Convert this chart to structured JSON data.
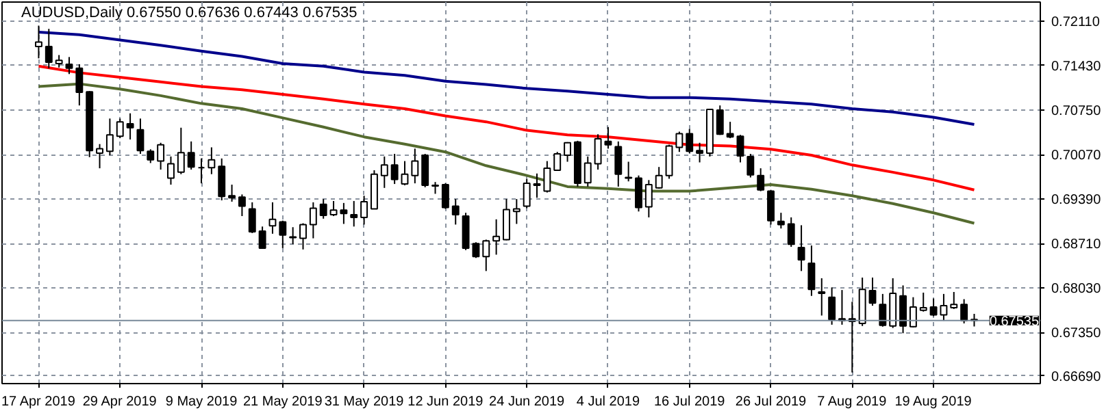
{
  "chart_data": {
    "type": "candlestick",
    "title": "AUDUSD,Daily  0.67550 0.67636 0.67443 0.67535",
    "categories": [
      "17 Apr 2019",
      null,
      null,
      null,
      null,
      null,
      null,
      null,
      "29 Apr 2019",
      null,
      null,
      null,
      null,
      null,
      null,
      null,
      "9 May 2019",
      null,
      null,
      null,
      null,
      null,
      null,
      null,
      "21 May 2019",
      null,
      null,
      null,
      null,
      null,
      null,
      null,
      "31 May 2019",
      null,
      null,
      null,
      null,
      null,
      null,
      null,
      "12 Jun 2019",
      null,
      null,
      null,
      null,
      null,
      null,
      null,
      "24 Jun 2019",
      null,
      null,
      null,
      null,
      null,
      null,
      null,
      "4 Jul 2019",
      null,
      null,
      null,
      null,
      null,
      null,
      null,
      "16 Jul 2019",
      null,
      null,
      null,
      null,
      null,
      null,
      null,
      "26 Jul 2019",
      null,
      null,
      null,
      null,
      null,
      null,
      null,
      "7 Aug 2019",
      null,
      null,
      null,
      null,
      null,
      null,
      null,
      "19 Aug 2019",
      null,
      null,
      null,
      null
    ],
    "ohlc": [
      [
        0.7172,
        0.7204,
        0.7154,
        0.7179
      ],
      [
        0.7172,
        0.7199,
        0.7139,
        0.7148
      ],
      [
        0.7146,
        0.7159,
        0.714,
        0.7151
      ],
      [
        0.7145,
        0.7156,
        0.713,
        0.7139
      ],
      [
        0.7139,
        0.7145,
        0.7082,
        0.7102
      ],
      [
        0.7103,
        0.7104,
        0.7003,
        0.7013
      ],
      [
        0.7009,
        0.7023,
        0.6986,
        0.7016
      ],
      [
        0.7012,
        0.7062,
        0.7006,
        0.7037
      ],
      [
        0.7035,
        0.7062,
        0.7032,
        0.7057
      ],
      [
        0.7054,
        0.707,
        0.703,
        0.7048
      ],
      [
        0.7045,
        0.7062,
        0.7008,
        0.7013
      ],
      [
        0.7012,
        0.7015,
        0.6994,
        0.6999
      ],
      [
        0.6997,
        0.7025,
        0.6984,
        0.7022
      ],
      [
        0.6971,
        0.7004,
        0.6961,
        0.6993
      ],
      [
        0.698,
        0.7048,
        0.6977,
        0.701
      ],
      [
        0.701,
        0.7027,
        0.6984,
        0.6988
      ],
      [
        0.6987,
        0.7001,
        0.6963,
        0.6987
      ],
      [
        0.6987,
        0.7018,
        0.6977,
        0.6999
      ],
      [
        0.6989,
        0.7001,
        0.6937,
        0.6943
      ],
      [
        0.6944,
        0.6961,
        0.6935,
        0.6941
      ],
      [
        0.6942,
        0.6946,
        0.6913,
        0.6928
      ],
      [
        0.6924,
        0.6934,
        0.6887,
        0.6889
      ],
      [
        0.689,
        0.6897,
        0.6863,
        0.6864
      ],
      [
        0.6898,
        0.6934,
        0.6886,
        0.6908
      ],
      [
        0.6904,
        0.6906,
        0.6864,
        0.6884
      ],
      [
        0.6881,
        0.6896,
        0.687,
        0.688
      ],
      [
        0.6879,
        0.6902,
        0.6862,
        0.69
      ],
      [
        0.69,
        0.6934,
        0.6879,
        0.6925
      ],
      [
        0.6931,
        0.6939,
        0.6909,
        0.6914
      ],
      [
        0.6915,
        0.6936,
        0.6913,
        0.6922
      ],
      [
        0.6922,
        0.6933,
        0.6901,
        0.6917
      ],
      [
        0.6915,
        0.6936,
        0.6897,
        0.6911
      ],
      [
        0.6911,
        0.6944,
        0.69,
        0.6935
      ],
      [
        0.6924,
        0.6983,
        0.6924,
        0.6977
      ],
      [
        0.6975,
        0.7004,
        0.6956,
        0.6991
      ],
      [
        0.6991,
        0.7008,
        0.6962,
        0.6969
      ],
      [
        0.6962,
        0.6997,
        0.696,
        0.6977
      ],
      [
        0.6975,
        0.7016,
        0.6963,
        0.6997
      ],
      [
        0.7006,
        0.7008,
        0.6957,
        0.696
      ],
      [
        0.696,
        0.6965,
        0.6947,
        0.6959
      ],
      [
        0.6961,
        0.6963,
        0.6924,
        0.6926
      ],
      [
        0.6928,
        0.6939,
        0.69,
        0.6915
      ],
      [
        0.6913,
        0.6918,
        0.6861,
        0.6864
      ],
      [
        0.6871,
        0.6873,
        0.6849,
        0.6851
      ],
      [
        0.6851,
        0.6877,
        0.6829,
        0.6875
      ],
      [
        0.6875,
        0.6908,
        0.6854,
        0.6882
      ],
      [
        0.6877,
        0.6939,
        0.6876,
        0.6923
      ],
      [
        0.692,
        0.6939,
        0.6901,
        0.6924
      ],
      [
        0.6928,
        0.697,
        0.6925,
        0.6963
      ],
      [
        0.696,
        0.6978,
        0.6941,
        0.6962
      ],
      [
        0.6951,
        0.6997,
        0.6949,
        0.6986
      ],
      [
        0.6983,
        0.7011,
        0.6982,
        0.7008
      ],
      [
        0.7006,
        0.7026,
        0.6996,
        0.7025
      ],
      [
        0.7026,
        0.7028,
        0.6958,
        0.6963
      ],
      [
        0.6964,
        0.7004,
        0.6958,
        0.6994
      ],
      [
        0.6993,
        0.7038,
        0.6984,
        0.7031
      ],
      [
        0.7027,
        0.7049,
        0.7016,
        0.7022
      ],
      [
        0.7019,
        0.7027,
        0.6958,
        0.6977
      ],
      [
        0.6972,
        0.6996,
        0.6966,
        0.6971
      ],
      [
        0.6971,
        0.6975,
        0.692,
        0.6926
      ],
      [
        0.6927,
        0.6968,
        0.6911,
        0.6961
      ],
      [
        0.6956,
        0.6988,
        0.6955,
        0.6975
      ],
      [
        0.6975,
        0.7022,
        0.697,
        0.702
      ],
      [
        0.7018,
        0.7042,
        0.7011,
        0.7039
      ],
      [
        0.7039,
        0.7046,
        0.7009,
        0.7012
      ],
      [
        0.7013,
        0.7025,
        0.6995,
        0.7009
      ],
      [
        0.7009,
        0.7077,
        0.7004,
        0.7076
      ],
      [
        0.7075,
        0.7082,
        0.7037,
        0.7038
      ],
      [
        0.7039,
        0.7057,
        0.7032,
        0.7034
      ],
      [
        0.7035,
        0.7037,
        0.6995,
        0.7005
      ],
      [
        0.7004,
        0.7008,
        0.6972,
        0.6976
      ],
      [
        0.6975,
        0.6986,
        0.6951,
        0.6953
      ],
      [
        0.6951,
        0.6953,
        0.69,
        0.6906
      ],
      [
        0.6905,
        0.6918,
        0.6894,
        0.69
      ],
      [
        0.6901,
        0.6911,
        0.6866,
        0.687
      ],
      [
        0.6865,
        0.6899,
        0.6829,
        0.6846
      ],
      [
        0.6841,
        0.6868,
        0.6791,
        0.6801
      ],
      [
        0.6797,
        0.6818,
        0.6761,
        0.6795
      ],
      [
        0.6789,
        0.6804,
        0.6747,
        0.6755
      ],
      [
        0.6756,
        0.68,
        0.6747,
        0.6753
      ],
      [
        0.6756,
        0.6782,
        0.6674,
        0.6752
      ],
      [
        0.6749,
        0.6819,
        0.6745,
        0.6801
      ],
      [
        0.6799,
        0.6819,
        0.6776,
        0.678
      ],
      [
        0.6778,
        0.6794,
        0.6744,
        0.6746
      ],
      [
        0.6745,
        0.6818,
        0.6742,
        0.6795
      ],
      [
        0.6791,
        0.6807,
        0.6734,
        0.6745
      ],
      [
        0.6744,
        0.6789,
        0.6743,
        0.6774
      ],
      [
        0.6769,
        0.6796,
        0.6767,
        0.6773
      ],
      [
        0.6774,
        0.6787,
        0.676,
        0.6762
      ],
      [
        0.6762,
        0.6794,
        0.6753,
        0.6776
      ],
      [
        0.6773,
        0.6797,
        0.6771,
        0.6778
      ],
      [
        0.6778,
        0.6786,
        0.6749,
        0.6753
      ],
      [
        0.6755,
        0.67636,
        0.67443,
        0.67535
      ]
    ],
    "series": [
      {
        "type": "line",
        "color": "#00008b",
        "values": [
          0.7194,
          null,
          null,
          null,
          0.719,
          null,
          null,
          null,
          0.7182,
          null,
          null,
          null,
          0.7174,
          null,
          null,
          null,
          0.7165,
          null,
          null,
          null,
          0.7157,
          null,
          null,
          null,
          0.7146,
          null,
          null,
          null,
          0.7142,
          null,
          null,
          null,
          0.7133,
          null,
          null,
          null,
          0.7128,
          null,
          null,
          null,
          0.7119,
          null,
          null,
          null,
          0.7114,
          null,
          null,
          null,
          0.7108,
          null,
          null,
          null,
          0.7104,
          null,
          null,
          null,
          0.7099,
          null,
          null,
          null,
          0.7094,
          null,
          null,
          null,
          0.7094,
          null,
          null,
          null,
          0.7092,
          null,
          null,
          null,
          0.7088,
          null,
          null,
          null,
          0.7084,
          null,
          null,
          null,
          0.7077,
          null,
          null,
          null,
          0.7072,
          null,
          null,
          null,
          0.7064,
          null,
          null,
          null,
          0.7053
        ]
      },
      {
        "type": "line",
        "color": "#ff0000",
        "values": [
          0.7142,
          null,
          null,
          null,
          0.7132,
          null,
          null,
          null,
          0.7125,
          null,
          null,
          null,
          0.7118,
          null,
          null,
          null,
          0.7111,
          null,
          null,
          null,
          0.7106,
          null,
          null,
          null,
          0.7099,
          null,
          null,
          null,
          0.7092,
          null,
          null,
          null,
          0.7084,
          null,
          null,
          null,
          0.7077,
          null,
          null,
          null,
          0.7066,
          null,
          null,
          null,
          0.7057,
          null,
          null,
          null,
          0.7044,
          null,
          null,
          null,
          0.7037,
          null,
          null,
          null,
          0.7034,
          null,
          null,
          null,
          0.7028,
          null,
          null,
          null,
          0.7022,
          null,
          null,
          null,
          0.702,
          null,
          null,
          null,
          0.7015,
          null,
          null,
          null,
          0.7006,
          null,
          null,
          null,
          0.6991,
          null,
          null,
          null,
          0.698,
          null,
          null,
          null,
          0.6968,
          null,
          null,
          null,
          0.6953
        ]
      },
      {
        "type": "line",
        "color": "#556b2f",
        "values": [
          0.7111,
          null,
          null,
          null,
          0.7115,
          null,
          null,
          null,
          0.7107,
          null,
          null,
          null,
          0.7097,
          null,
          null,
          null,
          0.7085,
          null,
          null,
          null,
          0.7077,
          null,
          null,
          null,
          0.7063,
          null,
          null,
          null,
          0.7049,
          null,
          null,
          null,
          0.7034,
          null,
          null,
          null,
          0.7023,
          null,
          null,
          null,
          0.7011,
          null,
          null,
          null,
          0.699,
          null,
          null,
          null,
          0.6975,
          null,
          null,
          null,
          0.6958,
          null,
          null,
          null,
          0.6955,
          null,
          null,
          null,
          0.6951,
          null,
          null,
          null,
          0.6951,
          null,
          null,
          null,
          0.6956,
          null,
          null,
          null,
          0.6961,
          null,
          null,
          null,
          0.6954,
          null,
          null,
          null,
          0.6944,
          null,
          null,
          null,
          0.6932,
          null,
          null,
          null,
          0.6918,
          null,
          null,
          null,
          0.6902
        ]
      }
    ],
    "ylim": [
      0.6657,
      0.724
    ],
    "yticks": [
      {
        "value": 0.7211,
        "label": "0.72110"
      },
      {
        "value": 0.7143,
        "label": "0.71430"
      },
      {
        "value": 0.7075,
        "label": "0.70750"
      },
      {
        "value": 0.7007,
        "label": "0.70070"
      },
      {
        "value": 0.6939,
        "label": "0.69390"
      },
      {
        "value": 0.6871,
        "label": "0.68710"
      },
      {
        "value": 0.6803,
        "label": "0.68030"
      },
      {
        "value": 0.6735,
        "label": "0.67350"
      },
      {
        "value": 0.6669,
        "label": "0.66690"
      }
    ],
    "ref_lines": [
      {
        "axis": "y",
        "value": 0.67535,
        "label": "0.67535",
        "color": "#778899"
      }
    ],
    "grid": true
  }
}
